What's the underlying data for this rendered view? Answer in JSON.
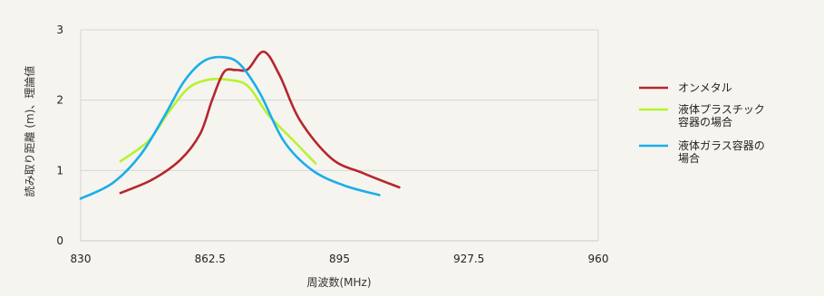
{
  "chart_data": {
    "type": "line",
    "title": "",
    "xlabel": "周波数(MHz)",
    "ylabel": "読み取り距離 (m)、理論値",
    "xlim": [
      830,
      960
    ],
    "ylim": [
      0,
      3
    ],
    "x_ticks": [
      830,
      862.5,
      895,
      927.5,
      960
    ],
    "x_tick_labels": [
      "830",
      "862.5",
      "895",
      "927.5",
      "960"
    ],
    "y_ticks": [
      0,
      1,
      2,
      3
    ],
    "y_tick_labels": [
      "0",
      "1",
      "2",
      "3"
    ],
    "grid": "horizontal",
    "legend_position": "right",
    "series": [
      {
        "name_lines": [
          "オンメタル"
        ],
        "color": "#b5272d",
        "x": [
          840,
          848,
          855,
          860,
          863,
          866,
          869,
          872,
          876,
          880,
          885,
          893,
          901,
          910
        ],
        "y": [
          0.68,
          0.87,
          1.15,
          1.52,
          2.0,
          2.4,
          2.43,
          2.44,
          2.69,
          2.35,
          1.72,
          1.17,
          0.96,
          0.76
        ]
      },
      {
        "name_lines": [
          "液体プラスチック",
          "容器の場合"
        ],
        "color": "#b7f230",
        "x": [
          840,
          847,
          852,
          857,
          862,
          867,
          872,
          877,
          883,
          889
        ],
        "y": [
          1.13,
          1.42,
          1.82,
          2.17,
          2.29,
          2.29,
          2.2,
          1.8,
          1.45,
          1.1
        ]
      },
      {
        "name_lines": [
          "液体ガラス容器の",
          "場合"
        ],
        "color": "#1aaee9",
        "x": [
          830,
          838,
          845,
          851,
          856,
          861,
          866,
          870,
          875,
          881,
          888,
          896,
          905
        ],
        "y": [
          0.6,
          0.82,
          1.22,
          1.77,
          2.27,
          2.56,
          2.61,
          2.51,
          2.1,
          1.42,
          1.01,
          0.79,
          0.65
        ]
      }
    ]
  }
}
